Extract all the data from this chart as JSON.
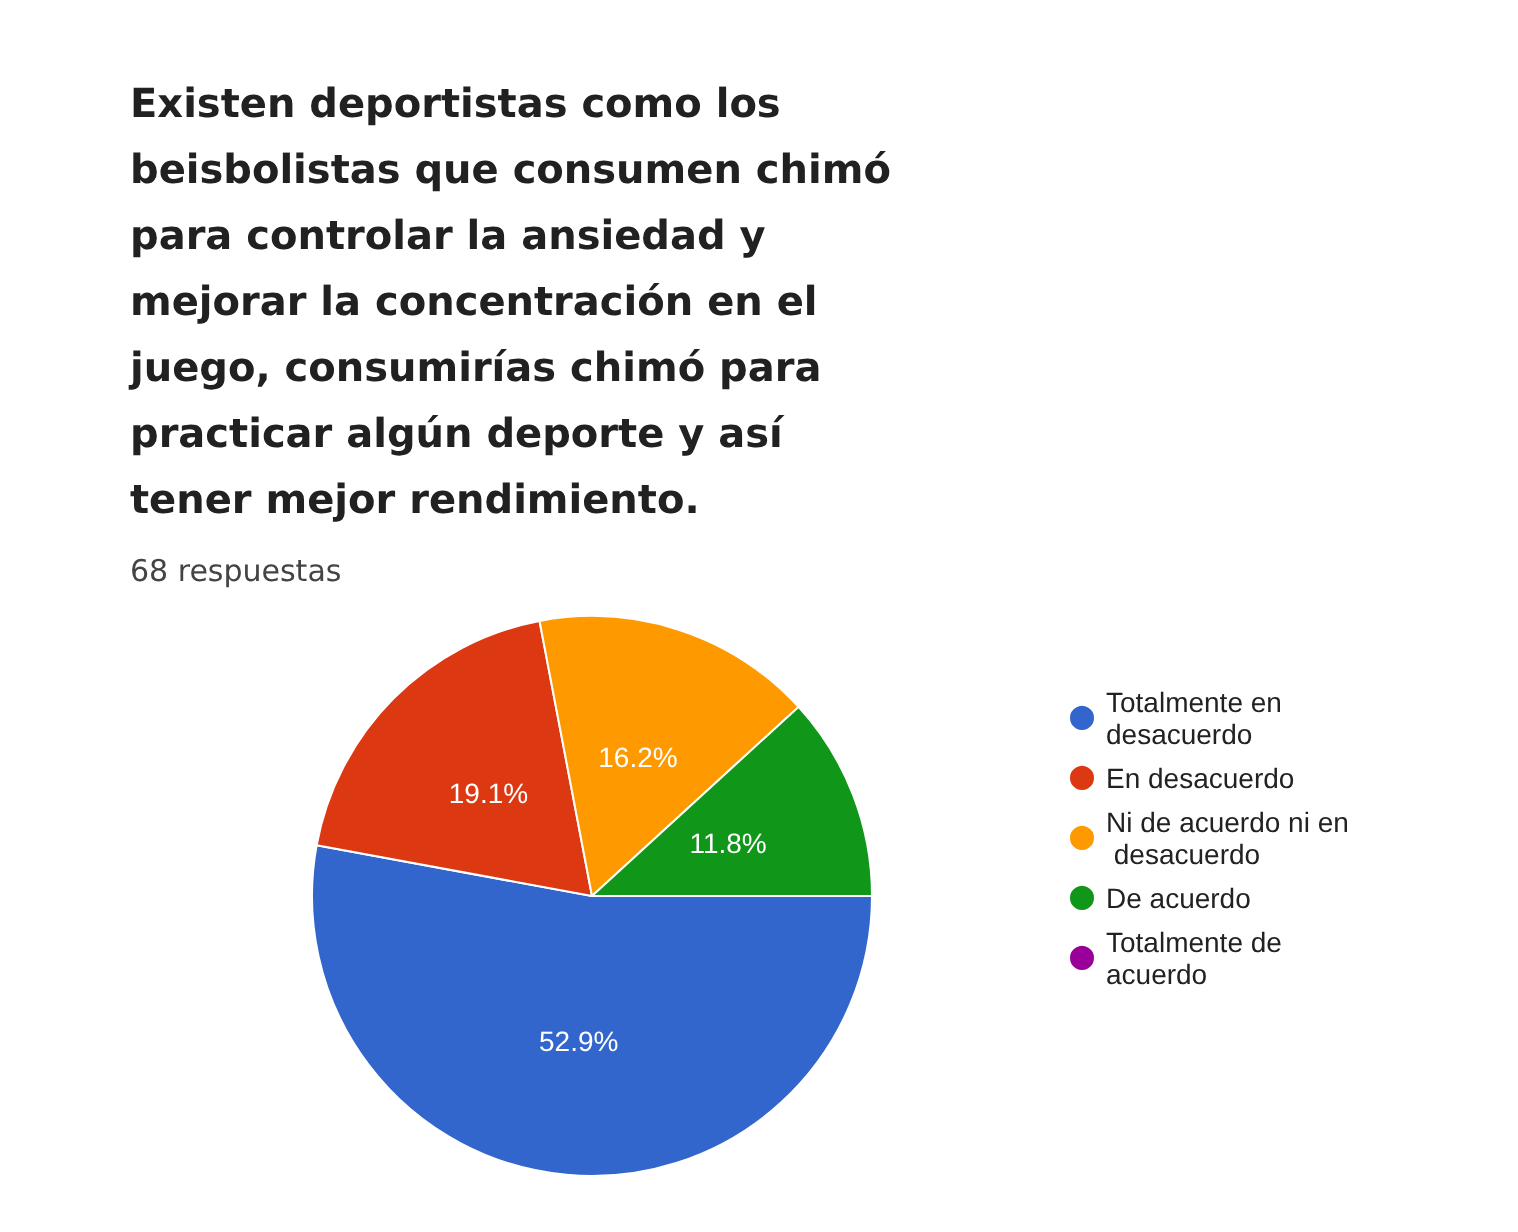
{
  "chart_data": {
    "type": "pie",
    "title": "Existen deportistas como los beisbolistas que consumen chimó para controlar la ansiedad y mejorar la concentración en el juego, consumirías chimó para practicar algún deporte y así tener mejor rendimiento.",
    "subtitle": "68 respuestas",
    "categories": [
      "Totalmente en desacuerdo",
      "En desacuerdo",
      "Ni de acuerdo ni en desacuerdo",
      "De acuerdo",
      "Totalmente de acuerdo"
    ],
    "values": [
      52.9,
      19.1,
      16.2,
      11.8,
      0
    ],
    "colors": [
      "#3366cc",
      "#dc3912",
      "#ff9900",
      "#109618",
      "#990099"
    ],
    "value_labels": [
      "52.9%",
      "19.1%",
      "16.2%",
      "11.8%",
      null
    ],
    "legend": "right"
  }
}
